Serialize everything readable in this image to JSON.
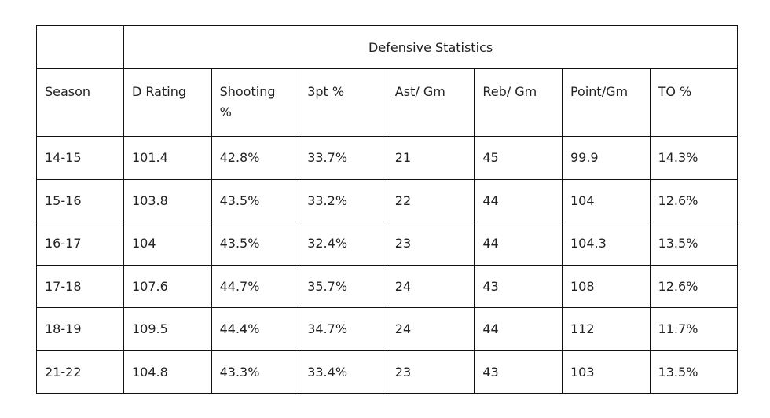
{
  "table": {
    "group_header": "Defensive Statistics",
    "columns": [
      "Season",
      "D Rating",
      "Shooting %",
      "3pt %",
      "Ast/ Gm",
      "Reb/ Gm",
      "Point/Gm",
      "TO %"
    ],
    "rows": [
      [
        "14-15",
        "101.4",
        "42.8%",
        "33.7%",
        "21",
        "45",
        "99.9",
        "14.3%"
      ],
      [
        "15-16",
        "103.8",
        "43.5%",
        "33.2%",
        "22",
        "44",
        "104",
        "12.6%"
      ],
      [
        "16-17",
        "104",
        "43.5%",
        "32.4%",
        "23",
        "44",
        "104.3",
        "13.5%"
      ],
      [
        "17-18",
        "107.6",
        "44.7%",
        "35.7%",
        "24",
        "43",
        "108",
        "12.6%"
      ],
      [
        "18-19",
        "109.5",
        "44.4%",
        "34.7%",
        "24",
        "44",
        "112",
        "11.7%"
      ],
      [
        "21-22",
        "104.8",
        "43.3%",
        "33.4%",
        "23",
        "43",
        "103",
        "13.5%"
      ]
    ]
  }
}
